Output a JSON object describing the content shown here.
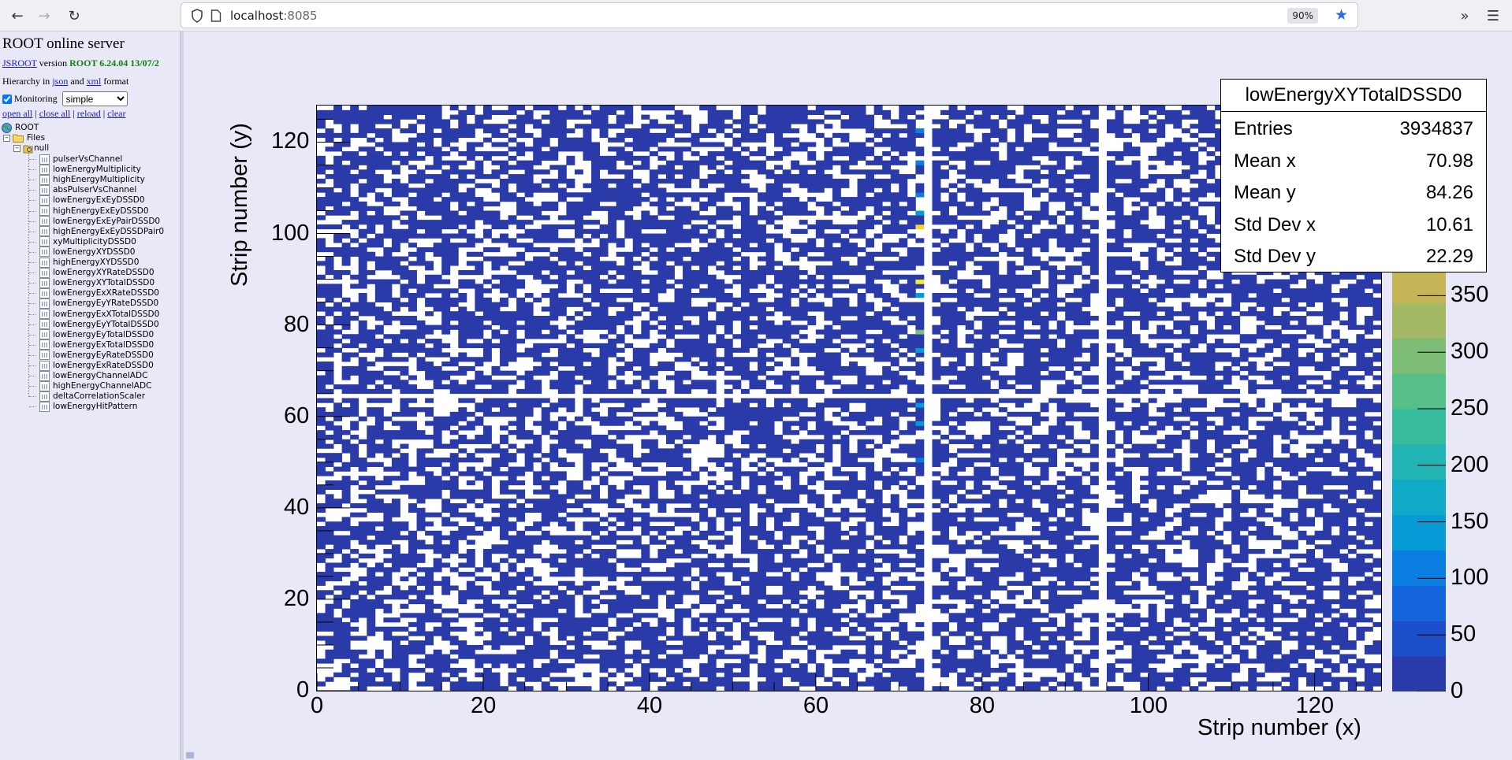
{
  "browser": {
    "url_host": "localhost",
    "url_port": ":8085",
    "zoom": "90%",
    "icons": [
      "back-arrow-icon",
      "forward-arrow-icon",
      "reload-icon",
      "shield-icon",
      "page-icon",
      "star-icon",
      "overflow-chevrons-icon",
      "hamburger-menu-icon"
    ]
  },
  "panel": {
    "title": "ROOT online server",
    "version_link": "JSROOT",
    "version_word": " version ",
    "version_value": "ROOT 6.24.04 13/07/2",
    "hierarchy_prefix": "Hierarchy in ",
    "hierarchy_json": "json",
    "hierarchy_and": " and ",
    "hierarchy_xml": "xml",
    "hierarchy_suffix": " format",
    "monitoring_label": "Monitoring",
    "monitoring_checked": true,
    "monitoring_value": "simple",
    "links": {
      "open_all": "open all",
      "close_all": "close all",
      "reload": "reload",
      "clear": "clear",
      "sep": " | "
    },
    "tree": {
      "root": "ROOT",
      "files": "Files",
      "null_node": "null",
      "items": [
        "pulserVsChannel",
        "lowEnergyMultiplicity",
        "highEnergyMultiplicity",
        "absPulserVsChannel",
        "lowEnergyExEyDSSD0",
        "highEnergyExEyDSSD0",
        "lowEnergyExEyPairDSSD0",
        "highEnergyExEyDSSDPair0",
        "xyMultiplicityDSSD0",
        "lowEnergyXYDSSD0",
        "highEnergyXYDSSD0",
        "lowEnergyXYRateDSSD0",
        "lowEnergyXYTotalDSSD0",
        "lowEnergyExXRateDSSD0",
        "lowEnergyEyYRateDSSD0",
        "lowEnergyExXTotalDSSD0",
        "lowEnergyEyYTotalDSSD0",
        "lowEnergyEyTotalDSSD0",
        "lowEnergyExTotalDSSD0",
        "lowEnergyEyRateDSSD0",
        "lowEnergyExRateDSSD0",
        "lowEnergyChannelADC",
        "highEnergyChannelADC",
        "deltaCorrelationScaler",
        "lowEnergyHitPattern"
      ]
    }
  },
  "stats": {
    "title": "lowEnergyXYTotalDSSD0",
    "rows": [
      {
        "label": "Entries",
        "value": "3934837"
      },
      {
        "label": "Mean x",
        "value": "70.98"
      },
      {
        "label": "Mean y",
        "value": "84.26"
      },
      {
        "label": "Std Dev x",
        "value": "10.61"
      },
      {
        "label": "Std Dev y",
        "value": "22.29"
      }
    ]
  },
  "chart_data": {
    "type": "heatmap",
    "xlabel": "Strip number (x)",
    "ylabel": "Strip number (y)",
    "xlim": [
      0,
      128
    ],
    "ylim": [
      0,
      128
    ],
    "x_ticks": [
      0,
      20,
      40,
      60,
      80,
      100,
      120
    ],
    "y_ticks": [
      0,
      20,
      40,
      60,
      80,
      100,
      120
    ],
    "z_ticks": [
      0,
      50,
      100,
      150,
      200,
      250,
      300,
      350
    ],
    "zlim": [
      0,
      500
    ],
    "dominant_cell_value": 20,
    "empty_columns": [
      73,
      94
    ],
    "empty_rows": [
      64
    ],
    "hot_cells": [
      {
        "x": 72,
        "y": 58,
        "z": 140
      },
      {
        "x": 72,
        "y": 62,
        "z": 130
      },
      {
        "x": 72,
        "y": 74,
        "z": 150
      },
      {
        "x": 72,
        "y": 78,
        "z": 300
      },
      {
        "x": 72,
        "y": 86,
        "z": 130
      },
      {
        "x": 72,
        "y": 101,
        "z": 440
      },
      {
        "x": 72,
        "y": 104,
        "z": 150
      },
      {
        "x": 72,
        "y": 108,
        "z": 120
      },
      {
        "x": 72,
        "y": 122,
        "z": 120
      },
      {
        "x": 72,
        "y": 115,
        "z": 110
      },
      {
        "x": 72,
        "y": 89,
        "z": 480
      },
      {
        "x": 72,
        "y": 50,
        "z": 110
      }
    ],
    "palette": [
      "#2a3aa8",
      "#1d4ec9",
      "#1464dc",
      "#0a7ee0",
      "#069bd6",
      "#10a9c6",
      "#22b4b2",
      "#38bb9c",
      "#56be88",
      "#7dbd76",
      "#a3b966",
      "#c5b556",
      "#e2b248",
      "#f5bc3a",
      "#f8d42c",
      "#f9e926"
    ]
  }
}
